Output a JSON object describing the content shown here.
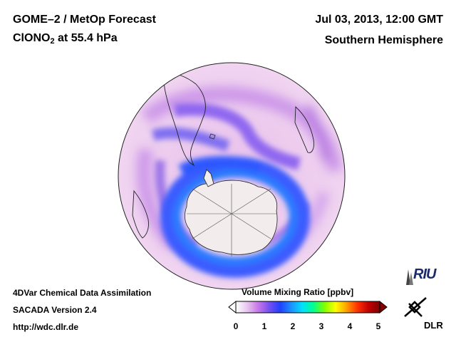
{
  "header": {
    "title_line1": "GOME–2 / MetOp Forecast",
    "species_main": "ClONO",
    "species_sub": "2",
    "level_text": " at 55.4 hPa",
    "date": "Jul 03, 2013, 12:00 GMT",
    "region": "Southern Hemisphere"
  },
  "footer": {
    "line1": "4DVar Chemical Data Assimilation",
    "line2": "SACADA Version 2.4",
    "line3": "http://wdc.dlr.de"
  },
  "colorbar": {
    "title": "Volume Mixing Ratio [ppbv]",
    "ticks": [
      "0",
      "1",
      "2",
      "3",
      "4",
      "5"
    ],
    "colors": [
      "#ffffff",
      "#e8c8f0",
      "#c878e8",
      "#7850f0",
      "#2040ff",
      "#1e90ff",
      "#00e0ff",
      "#00ff90",
      "#80ff00",
      "#ffff00",
      "#ffa000",
      "#ff3000",
      "#c00000",
      "#800000"
    ]
  },
  "logos": {
    "riu": "RIU",
    "dlr": "DLR"
  },
  "map": {
    "projection": "orthographic, south pole",
    "ocean_color": "#f0ecf0",
    "antarctica_color": "#f0ecec"
  }
}
